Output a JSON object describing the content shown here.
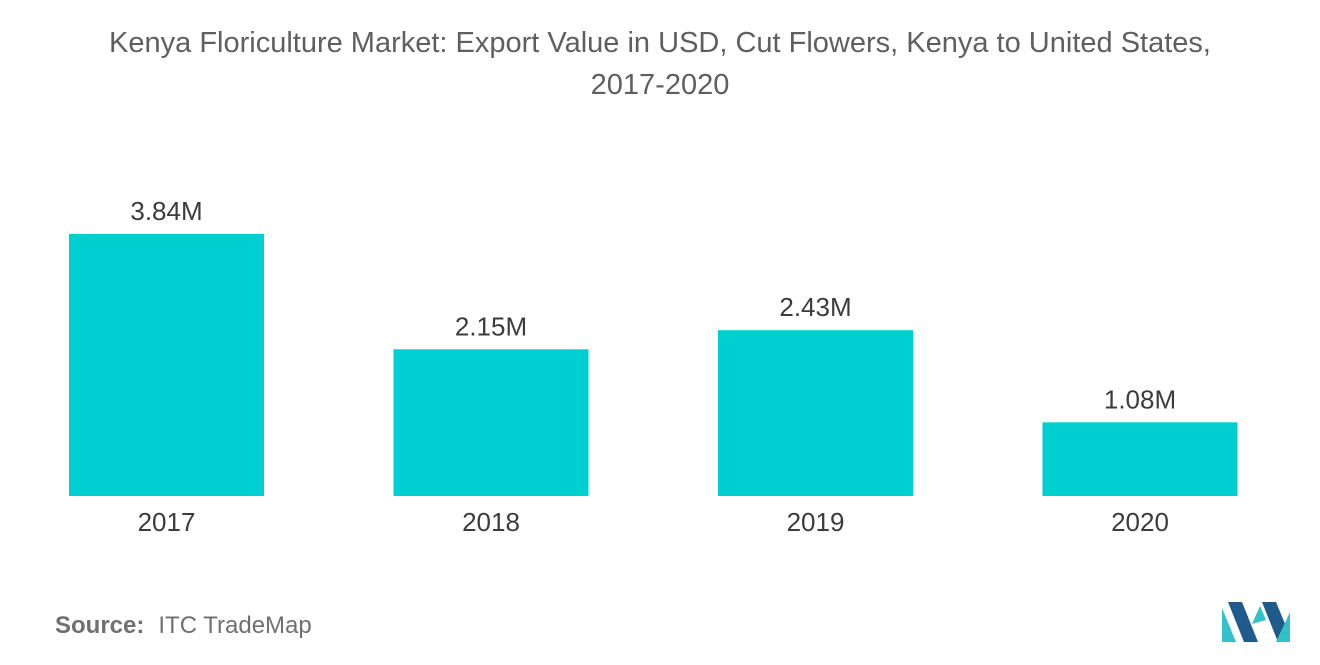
{
  "header": {
    "title_line1": "Kenya Floriculture Market: Export Value in USD, Cut Flowers, Kenya to United States,",
    "title_line2": "2017-2020"
  },
  "chart_data": {
    "type": "bar",
    "title": "Kenya Floriculture Market: Export Value in USD, Cut Flowers, Kenya to United States, 2017-2020",
    "categories": [
      "2017",
      "2018",
      "2019",
      "2020"
    ],
    "values": [
      3.84,
      2.15,
      2.43,
      1.08
    ],
    "value_labels": [
      "3.84M",
      "2.15M",
      "2.43M",
      "1.08M"
    ],
    "unit": "M",
    "xlabel": "",
    "ylabel": "",
    "ylim": [
      0,
      3.84
    ],
    "grid": false,
    "legend": "none",
    "bar_color": "#00cfd1"
  },
  "footer": {
    "source_label": "Source:",
    "source_value": "ITC TradeMap"
  },
  "logo": {
    "icon": "mordor-intelligence-logo-icon",
    "color_dark": "#1f5a8a",
    "color_light": "#33c1c8"
  }
}
